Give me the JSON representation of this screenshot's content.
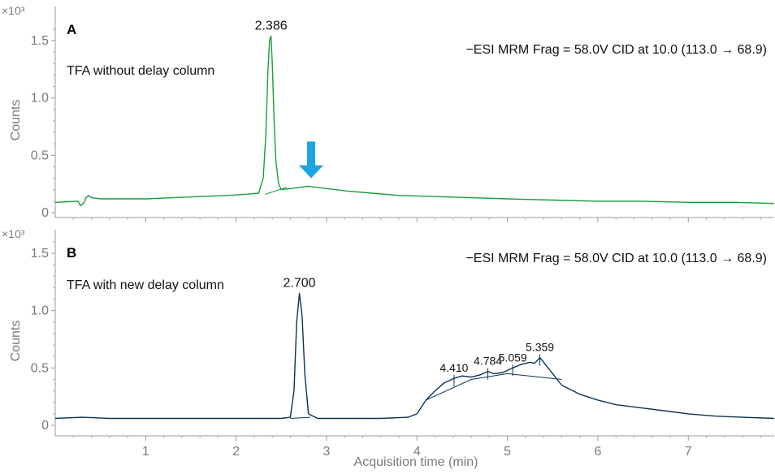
{
  "chart_data": [
    {
      "type": "line",
      "panel_label": "A",
      "annotation_label": "TFA without delay column",
      "method_text": "−ESI MRM Frag = 58.0V CID at 10.0 (113.0 → 68.9)",
      "ylabel": "Counts",
      "y_multiplier": "×10³",
      "xlim": [
        0,
        7.95
      ],
      "ylim": [
        0,
        1.65
      ],
      "yticks": [
        0,
        0.5,
        1.0,
        1.5
      ],
      "ytick_labels": [
        "0",
        "0.5",
        "1.0",
        "1.5"
      ],
      "xticks": [
        1,
        2,
        3,
        4,
        5,
        6,
        7
      ],
      "xtick_labels": [
        "",
        "",
        "",
        "",
        "",
        "",
        ""
      ],
      "color": "#1a9c3e",
      "series": [
        {
          "x": [
            0,
            0.25,
            0.28,
            0.32,
            0.34,
            0.37,
            0.4,
            0.5,
            0.7,
            1.0,
            1.3,
            1.6,
            1.9,
            2.1,
            2.25,
            2.3,
            2.33,
            2.35,
            2.37,
            2.386,
            2.4,
            2.42,
            2.44,
            2.47,
            2.5,
            2.6,
            2.7,
            2.8,
            2.9,
            3.0,
            3.2,
            3.5,
            3.8,
            4.2,
            4.6,
            5.0,
            5.5,
            6.0,
            6.5,
            7.0,
            7.5,
            7.95
          ],
          "y": [
            0.09,
            0.1,
            0.06,
            0.09,
            0.13,
            0.15,
            0.13,
            0.12,
            0.12,
            0.12,
            0.13,
            0.14,
            0.15,
            0.16,
            0.17,
            0.3,
            0.7,
            1.2,
            1.5,
            1.54,
            1.3,
            0.8,
            0.45,
            0.25,
            0.2,
            0.21,
            0.22,
            0.23,
            0.22,
            0.21,
            0.19,
            0.17,
            0.15,
            0.14,
            0.13,
            0.12,
            0.11,
            0.1,
            0.1,
            0.09,
            0.09,
            0.08
          ]
        }
      ],
      "peak_labels": [
        {
          "x": 2.386,
          "y": 1.54,
          "text": "2.386"
        }
      ],
      "baseline_segments": [
        [
          [
            2.32,
            0.16
          ],
          [
            2.56,
            0.22
          ]
        ]
      ],
      "arrow": {
        "x": 2.83,
        "y_top": 0.62,
        "y_bottom": 0.3,
        "color": "#1ba4e0"
      }
    },
    {
      "type": "line",
      "panel_label": "B",
      "annotation_label": "TFA with new delay column",
      "method_text": "−ESI MRM Frag = 58.0V CID at 10.0 (113.0 → 68.9)",
      "ylabel": "Counts",
      "xlabel": "Acquisition time (min)",
      "y_multiplier": "×10³",
      "xlim": [
        0,
        7.95
      ],
      "ylim": [
        0,
        1.65
      ],
      "yticks": [
        0,
        0.5,
        1.0,
        1.5
      ],
      "ytick_labels": [
        "0",
        "0.5",
        "1.0",
        "1.5"
      ],
      "xticks": [
        1,
        2,
        3,
        4,
        5,
        6,
        7
      ],
      "xtick_labels": [
        "1",
        "2",
        "3",
        "4",
        "5",
        "6",
        "7"
      ],
      "color": "#0c3353",
      "series": [
        {
          "x": [
            0,
            0.3,
            0.6,
            1.0,
            1.5,
            2.0,
            2.5,
            2.6,
            2.64,
            2.67,
            2.7,
            2.73,
            2.76,
            2.8,
            2.9,
            3.2,
            3.6,
            3.9,
            4.0,
            4.05,
            4.1,
            4.2,
            4.3,
            4.41,
            4.5,
            4.6,
            4.7,
            4.784,
            4.85,
            4.95,
            5.059,
            5.15,
            5.25,
            5.3,
            5.359,
            5.42,
            5.5,
            5.6,
            5.8,
            6.0,
            6.2,
            6.5,
            6.8,
            7.0,
            7.3,
            7.6,
            7.95
          ],
          "y": [
            0.06,
            0.07,
            0.06,
            0.06,
            0.06,
            0.06,
            0.06,
            0.07,
            0.3,
            0.9,
            1.15,
            0.95,
            0.45,
            0.1,
            0.06,
            0.06,
            0.06,
            0.07,
            0.1,
            0.16,
            0.22,
            0.3,
            0.37,
            0.41,
            0.43,
            0.42,
            0.44,
            0.47,
            0.45,
            0.46,
            0.5,
            0.53,
            0.55,
            0.54,
            0.59,
            0.53,
            0.45,
            0.35,
            0.27,
            0.22,
            0.18,
            0.15,
            0.12,
            0.1,
            0.08,
            0.07,
            0.06
          ]
        }
      ],
      "peak_labels": [
        {
          "x": 2.7,
          "y": 1.15,
          "text": "2.700"
        },
        {
          "x": 4.41,
          "y": 0.41,
          "text": "4.410"
        },
        {
          "x": 4.784,
          "y": 0.47,
          "text": "4.784"
        },
        {
          "x": 5.059,
          "y": 0.5,
          "text": "5.059"
        },
        {
          "x": 5.359,
          "y": 0.59,
          "text": "5.359"
        }
      ],
      "baseline_segments": [
        [
          [
            2.6,
            0.06
          ],
          [
            2.82,
            0.07
          ]
        ],
        [
          [
            4.1,
            0.22
          ],
          [
            4.6,
            0.4
          ],
          [
            5.0,
            0.45
          ],
          [
            5.6,
            0.4
          ]
        ]
      ]
    }
  ]
}
